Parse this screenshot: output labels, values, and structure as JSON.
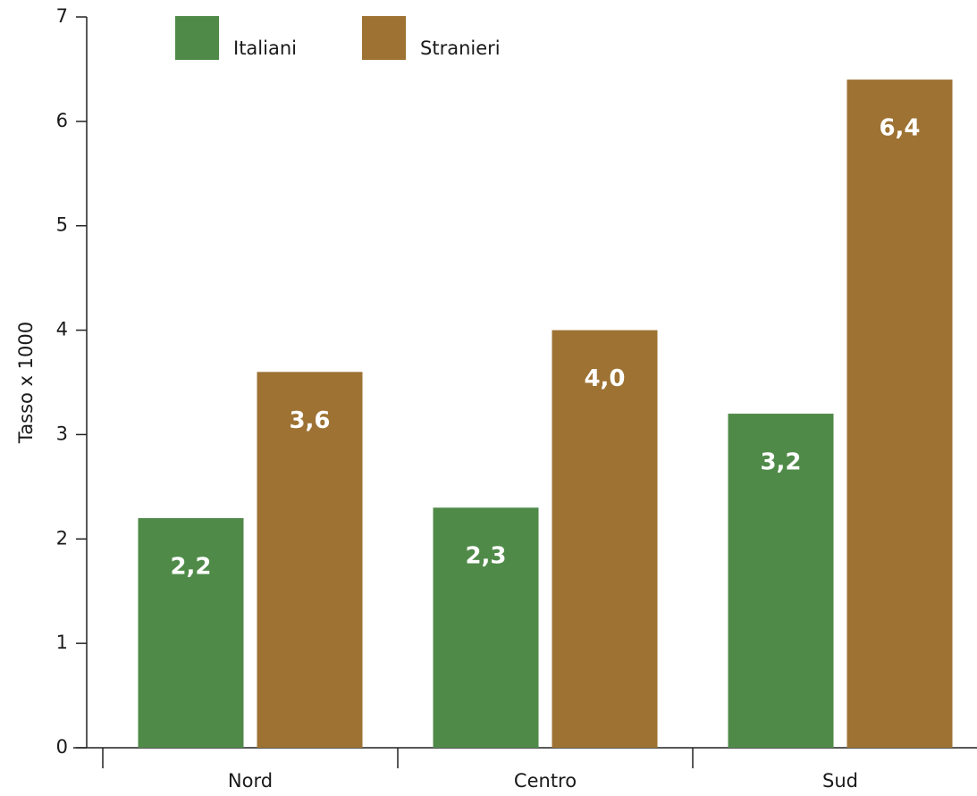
{
  "chart_data": {
    "type": "bar",
    "y_label": "Tasso x 1000",
    "categories": [
      "Nord",
      "Centro",
      "Sud"
    ],
    "series": [
      {
        "name": "Italiani",
        "color": "#4f8a48",
        "values": [
          2.2,
          2.3,
          3.2
        ],
        "value_labels": [
          "2,2",
          "2,3",
          "3,2"
        ]
      },
      {
        "name": "Stranieri",
        "color": "#9d7233",
        "values": [
          3.6,
          4.0,
          6.4
        ],
        "value_labels": [
          "3,6",
          "4,0",
          "6,4"
        ]
      }
    ],
    "ylim": [
      0,
      7
    ],
    "yticks": [
      0,
      1,
      2,
      3,
      4,
      5,
      6,
      7
    ]
  }
}
